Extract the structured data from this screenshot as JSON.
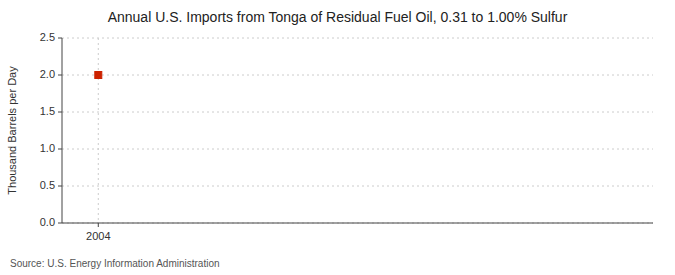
{
  "chart_data": {
    "type": "scatter",
    "title": "Annual U.S. Imports from Tonga of Residual Fuel Oil, 0.31 to 1.00% Sulfur",
    "y_label": "Thousand Barrels per Day",
    "source": "Source: U.S. Energy Information Administration",
    "x": [
      2004
    ],
    "values": [
      2
    ],
    "color": "#cc2200",
    "marker": "square",
    "xlim": [
      2003.3,
      2014.7
    ],
    "ylim": [
      0,
      2.5
    ],
    "xticks": [
      2004
    ],
    "yticks": [
      {
        "value": 0,
        "label": "0.0"
      },
      0.5,
      {
        "value": 1,
        "label": "1.0"
      },
      1.5,
      {
        "value": 2,
        "label": "2.0"
      },
      2.5
    ],
    "grid": true
  }
}
